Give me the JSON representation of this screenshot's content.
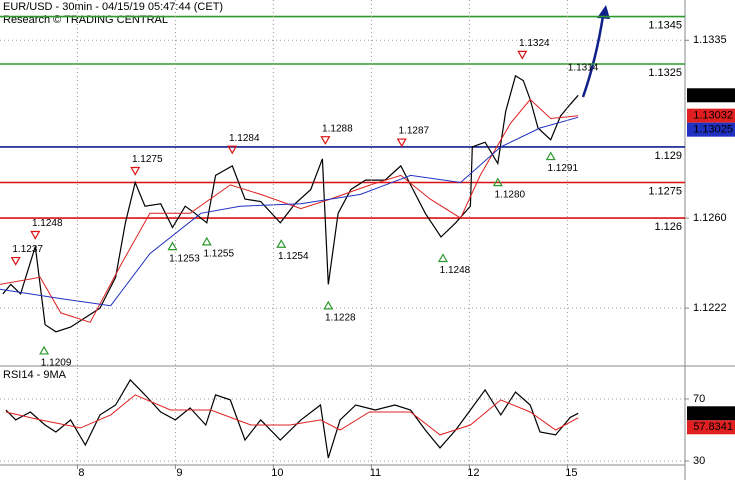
{
  "chart_data": [
    {
      "type": "line",
      "title": "EUR/USD - 30min - 04/15/19 05:47:44 (CET)",
      "subtitle": "Research © TRADING CENTRAL",
      "xlim": [
        0.21,
        7.2
      ],
      "ylim": [
        1.1198,
        1.1352
      ],
      "yticks": [
        1.1335,
        {
          "value": 1.126,
          "label": "1.1260"
        },
        1.1222
      ],
      "grid": true,
      "series": [
        {
          "color": "#000000",
          "x": [
            0.24,
            0.32,
            0.42,
            0.57,
            0.67,
            0.78,
            0.93,
            1.08,
            1.23,
            1.39,
            1.49,
            1.59,
            1.69,
            1.85,
            1.97,
            2.1,
            2.2,
            2.32,
            2.41,
            2.58,
            2.71,
            2.87,
            3.07,
            3.22,
            3.38,
            3.5,
            3.56,
            3.66,
            3.79,
            3.94,
            4.14,
            4.3,
            4.45,
            4.55,
            4.71,
            4.86,
            5.01,
            5.03,
            5.16,
            5.29,
            5.37,
            5.47,
            5.55,
            5.62,
            5.7,
            5.83,
            5.93,
            6.03,
            6.11
          ],
          "values": [
            1.1228,
            1.1232,
            1.1228,
            1.1248,
            1.1215,
            1.1212,
            1.1214,
            1.1218,
            1.1222,
            1.1235,
            1.1258,
            1.1275,
            1.1265,
            1.1266,
            1.1256,
            1.1265,
            1.1262,
            1.1258,
            1.1278,
            1.1282,
            1.1268,
            1.1267,
            1.1258,
            1.1266,
            1.1272,
            1.1285,
            1.1232,
            1.1262,
            1.1272,
            1.1276,
            1.1276,
            1.1282,
            1.127,
            1.1262,
            1.1252,
            1.1258,
            1.1265,
            1.129,
            1.1292,
            1.1283,
            1.1305,
            1.132,
            1.1318,
            1.131,
            1.1298,
            1.1293,
            1.1303,
            1.1308,
            1.13118
          ]
        },
        {
          "color": "#e02020",
          "x": [
            0.21,
            0.62,
            0.83,
            1.13,
            1.44,
            1.74,
            2.15,
            2.56,
            2.87,
            3.28,
            3.58,
            3.99,
            4.3,
            4.6,
            4.91,
            5.11,
            5.42,
            5.62,
            5.83,
            6.11
          ],
          "values": [
            1.1232,
            1.1235,
            1.122,
            1.1216,
            1.124,
            1.1262,
            1.1262,
            1.1274,
            1.127,
            1.1264,
            1.1268,
            1.1274,
            1.1278,
            1.1268,
            1.126,
            1.1278,
            1.13,
            1.131,
            1.1302,
            1.13032
          ]
        },
        {
          "color": "#2030c0",
          "x": [
            0.21,
            0.83,
            1.34,
            1.74,
            2.26,
            2.66,
            3.28,
            3.89,
            4.4,
            4.91,
            5.32,
            5.72,
            6.11
          ],
          "values": [
            1.123,
            1.1226,
            1.1223,
            1.1245,
            1.1262,
            1.1265,
            1.1266,
            1.127,
            1.1278,
            1.1275,
            1.129,
            1.1298,
            1.13025
          ]
        }
      ],
      "levels": [
        {
          "value": 1.1345,
          "color": "#2e9a2e"
        },
        {
          "value": 1.1325,
          "color": "#2e9a2e"
        },
        {
          "value": 1.129,
          "color": "#10208a"
        },
        {
          "value": 1.1275,
          "color": "#dd1111"
        },
        {
          "value": 1.126,
          "color": "#dd1111"
        }
      ],
      "annotations": [
        {
          "x": 0.37,
          "value": 1.1237,
          "kind": "high"
        },
        {
          "x": 0.57,
          "value": 1.1248,
          "kind": "high"
        },
        {
          "x": 1.59,
          "value": 1.1275,
          "kind": "high"
        },
        {
          "x": 2.58,
          "value": 1.1284,
          "kind": "high"
        },
        {
          "x": 3.53,
          "value": 1.1288,
          "kind": "high"
        },
        {
          "x": 4.31,
          "value": 1.1287,
          "kind": "high"
        },
        {
          "x": 5.54,
          "value": 1.1324,
          "kind": "high"
        },
        {
          "x": 0.66,
          "value": 1.1209,
          "kind": "low"
        },
        {
          "x": 1.97,
          "value": 1.1253,
          "kind": "low"
        },
        {
          "x": 2.32,
          "value": 1.1255,
          "kind": "low"
        },
        {
          "x": 3.08,
          "value": 1.1254,
          "kind": "low"
        },
        {
          "x": 3.56,
          "value": 1.1228,
          "kind": "low"
        },
        {
          "x": 4.73,
          "value": 1.1248,
          "kind": "low"
        },
        {
          "x": 5.29,
          "value": 1.128,
          "label": "1.1280",
          "kind": "low"
        },
        {
          "x": 5.83,
          "value": 1.1291,
          "kind": "low"
        },
        {
          "x": 6.16,
          "value": 1.1314
        }
      ]
    },
    {
      "type": "line",
      "title": "RSI14 - 9MA",
      "xlim": [
        0.21,
        7.2
      ],
      "ylim": [
        27.4,
        90.6
      ],
      "yticks": [
        70,
        30
      ],
      "xticks": [
        {
          "value": 1,
          "label": "8"
        },
        {
          "value": 2,
          "label": "9"
        },
        {
          "value": 3,
          "label": "10"
        },
        {
          "value": 4,
          "label": "11"
        },
        {
          "value": 5,
          "label": "12"
        },
        {
          "value": 6,
          "label": "15"
        }
      ],
      "grid": true,
      "series": [
        {
          "color": "#000000",
          "x": [
            0.27,
            0.37,
            0.52,
            0.67,
            0.78,
            0.93,
            1.08,
            1.23,
            1.39,
            1.54,
            1.69,
            1.85,
            2.0,
            2.15,
            2.31,
            2.41,
            2.56,
            2.71,
            2.87,
            3.07,
            3.28,
            3.48,
            3.56,
            3.68,
            3.84,
            4.04,
            4.24,
            4.4,
            4.55,
            4.7,
            4.86,
            5.01,
            5.16,
            5.32,
            5.47,
            5.62,
            5.72,
            5.88,
            6.03,
            6.11
          ],
          "values": [
            62.9,
            56.5,
            61.6,
            53.2,
            48.7,
            56.5,
            40.3,
            59.7,
            66.1,
            82.3,
            72.6,
            61.6,
            56.5,
            64.2,
            53.2,
            72.6,
            69.4,
            43.5,
            56.5,
            43.5,
            56.5,
            66.1,
            31.9,
            56.5,
            66.1,
            62.9,
            66.1,
            62.9,
            50,
            38.4,
            50,
            62.9,
            75.8,
            59.7,
            74.5,
            66.1,
            48.7,
            46.8,
            58.1,
            60.7474
          ]
        },
        {
          "color": "#e02020",
          "x": [
            0.27,
            0.62,
            1.03,
            1.34,
            1.59,
            1.95,
            2.36,
            2.77,
            3.17,
            3.48,
            3.68,
            3.98,
            4.4,
            4.7,
            5.01,
            5.32,
            5.62,
            5.88,
            6.11
          ],
          "values": [
            61.6,
            56.5,
            51.3,
            59.7,
            72.6,
            62.9,
            62.9,
            53.2,
            53.2,
            56.5,
            50,
            61.6,
            61.6,
            46.8,
            53.2,
            69.4,
            61.6,
            50,
            57.8341
          ]
        }
      ]
    }
  ]
}
